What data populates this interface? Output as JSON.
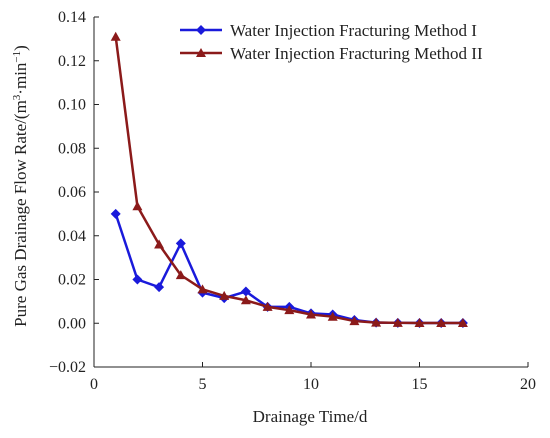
{
  "chart_data": {
    "type": "line",
    "xlabel": "Drainage Time/d",
    "ylabel_text": "Pure Gas Drainage Flow Rate/(m",
    "ylabel_sup1": "3",
    "ylabel_mid": "·min",
    "ylabel_sup2": "−1",
    "ylabel_end": ")",
    "xlim": [
      0,
      20
    ],
    "ylim": [
      -0.02,
      0.14
    ],
    "xticks": [
      0,
      5,
      10,
      15,
      20
    ],
    "xtick_labels": [
      "0",
      "5",
      "10",
      "15",
      "20"
    ],
    "yticks": [
      -0.02,
      0.0,
      0.02,
      0.04,
      0.06,
      0.08,
      0.1,
      0.12,
      0.14
    ],
    "ytick_labels": [
      "−0.02",
      "0.00",
      "0.02",
      "0.04",
      "0.06",
      "0.08",
      "0.10",
      "0.12",
      "0.14"
    ],
    "grid": false,
    "legend_position": "top-right",
    "series": [
      {
        "name": "Water Injection Fracturing Method I",
        "color": "#1a1adb",
        "marker": "diamond",
        "x": [
          1,
          2,
          3,
          4,
          5,
          6,
          7,
          8,
          9,
          10,
          11,
          12,
          13,
          14,
          15,
          16,
          17
        ],
        "y": [
          0.05,
          0.02,
          0.0165,
          0.0365,
          0.014,
          0.0115,
          0.0145,
          0.0075,
          0.0075,
          0.0045,
          0.004,
          0.0015,
          0.0003,
          0.0002,
          0.0001,
          0.0001,
          0.0001
        ]
      },
      {
        "name": "Water Injection Fracturing Method II",
        "color": "#8b1a1a",
        "marker": "triangle",
        "x": [
          1,
          2,
          3,
          4,
          5,
          6,
          7,
          8,
          9,
          10,
          11,
          12,
          13,
          14,
          15,
          16,
          17
        ],
        "y": [
          0.131,
          0.0535,
          0.036,
          0.022,
          0.0155,
          0.0125,
          0.0105,
          0.0075,
          0.006,
          0.004,
          0.003,
          0.001,
          0.0003,
          0.0002,
          0.0001,
          0.0001,
          0.0001
        ]
      }
    ]
  }
}
